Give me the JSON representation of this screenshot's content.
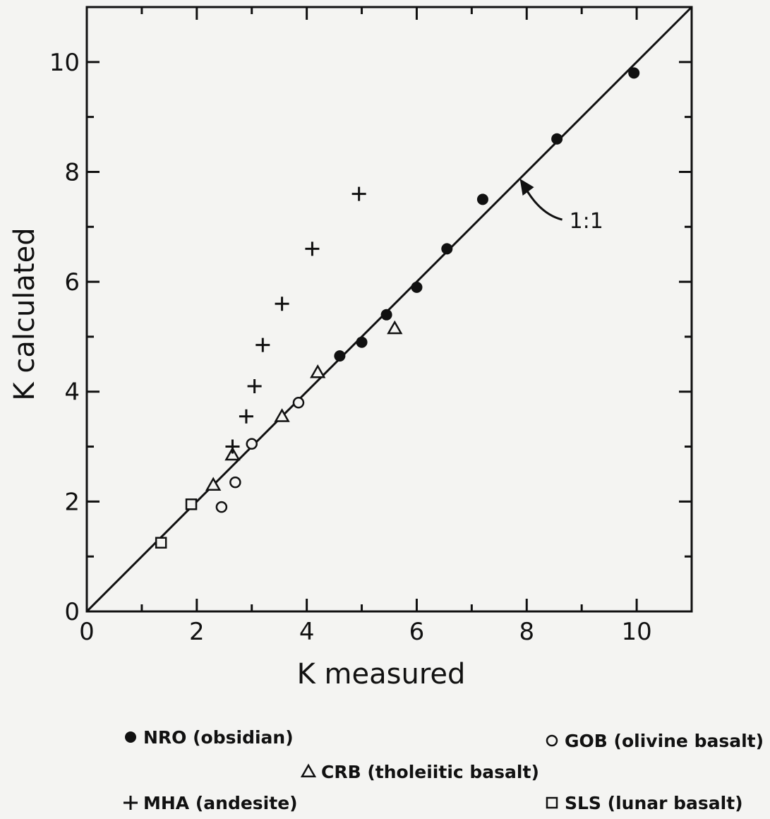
{
  "chart_data": {
    "type": "scatter",
    "title": "",
    "xlabel": "K measured",
    "ylabel": "K calculated",
    "xlim": [
      0,
      11
    ],
    "ylim": [
      0,
      11
    ],
    "x_ticks": [
      0,
      2,
      4,
      6,
      8,
      10
    ],
    "y_ticks": [
      0,
      2,
      4,
      6,
      8,
      10
    ],
    "x_tick_labels": [
      "0",
      "2",
      "4",
      "6",
      "8",
      "10"
    ],
    "y_tick_labels": [
      "0",
      "2",
      "4",
      "6",
      "8",
      "10"
    ],
    "minor_tick_step": 1,
    "grid": false,
    "reference_line": {
      "label": "1:1",
      "from": [
        0,
        0
      ],
      "to": [
        11,
        11
      ]
    },
    "series": [
      {
        "name": "NRO (obsidian)",
        "marker": "filled-circle",
        "points": [
          [
            4.6,
            4.65
          ],
          [
            5.0,
            4.9
          ],
          [
            5.45,
            5.4
          ],
          [
            6.0,
            5.9
          ],
          [
            6.55,
            6.6
          ],
          [
            7.2,
            7.5
          ],
          [
            8.55,
            8.6
          ],
          [
            9.95,
            9.8
          ]
        ]
      },
      {
        "name": "CRB (tholeiitic basalt)",
        "marker": "open-triangle",
        "points": [
          [
            2.3,
            2.3
          ],
          [
            2.65,
            2.85
          ],
          [
            3.55,
            3.55
          ],
          [
            4.2,
            4.35
          ],
          [
            5.6,
            5.15
          ]
        ]
      },
      {
        "name": "MHA (andesite)",
        "marker": "plus",
        "points": [
          [
            2.65,
            3.0
          ],
          [
            2.9,
            3.55
          ],
          [
            3.05,
            4.1
          ],
          [
            3.2,
            4.85
          ],
          [
            3.55,
            5.6
          ],
          [
            4.1,
            6.6
          ],
          [
            4.95,
            7.6
          ]
        ]
      },
      {
        "name": "GOB (olivine basalt)",
        "marker": "open-circle",
        "points": [
          [
            2.45,
            1.9
          ],
          [
            2.7,
            2.35
          ],
          [
            3.0,
            3.05
          ],
          [
            3.85,
            3.8
          ]
        ]
      },
      {
        "name": "SLS (lunar basalt)",
        "marker": "open-square",
        "points": [
          [
            1.35,
            1.25
          ],
          [
            1.9,
            1.95
          ]
        ]
      }
    ],
    "legend_position": "bottom"
  },
  "legend": [
    {
      "series": 0,
      "label": "NRO (obsidian)"
    },
    {
      "series": 3,
      "label": "GOB (olivine basalt)"
    },
    {
      "series": 1,
      "label": "CRB (tholeiitic basalt)"
    },
    {
      "series": 2,
      "label": "MHA (andesite)"
    },
    {
      "series": 4,
      "label": "SLS (lunar basalt)"
    }
  ]
}
